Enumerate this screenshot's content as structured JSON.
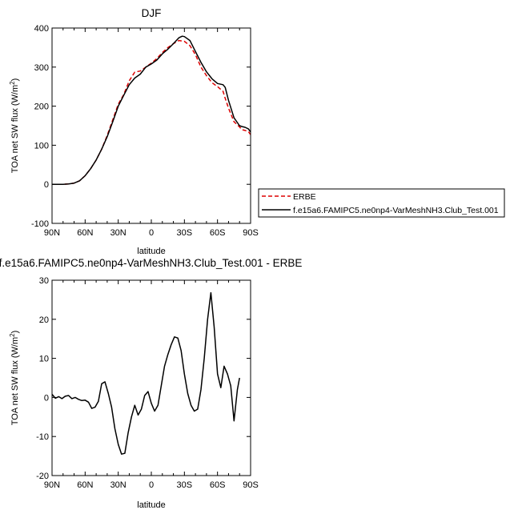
{
  "colors": {
    "erbe": "#dd0000",
    "model": "#000000"
  },
  "chart_data": [
    {
      "type": "line",
      "title": "DJF",
      "xlabel": "latitude",
      "ylabel": "TOA net SW flux (W/m",
      "ylabel_sup": "2",
      "ylabel_tail": ")",
      "xlim": [
        90,
        -90
      ],
      "ylim": [
        -100,
        400
      ],
      "x_ticks": [
        90,
        60,
        30,
        0,
        -30,
        -60,
        -90
      ],
      "x_tick_labels": [
        "90N",
        "60N",
        "30N",
        "0",
        "30S",
        "60S",
        "90S"
      ],
      "y_ticks": [
        -100,
        0,
        100,
        200,
        300,
        400
      ],
      "y_tick_labels": [
        "-100",
        "0",
        "100",
        "200",
        "300",
        "400"
      ],
      "legend_position": "right",
      "series": [
        {
          "name": "ERBE",
          "style": "dashed",
          "points": [
            [
              90,
              0
            ],
            [
              80,
              0
            ],
            [
              75,
              1
            ],
            [
              70,
              3
            ],
            [
              65,
              9
            ],
            [
              60,
              22
            ],
            [
              55,
              40
            ],
            [
              50,
              62
            ],
            [
              45,
              90
            ],
            [
              40,
              125
            ],
            [
              35,
              165
            ],
            [
              30,
              205
            ],
            [
              25,
              230
            ],
            [
              20,
              265
            ],
            [
              15,
              287
            ],
            [
              10,
              290
            ],
            [
              5,
              300
            ],
            [
              0,
              310
            ],
            [
              -5,
              322
            ],
            [
              -10,
              337
            ],
            [
              -15,
              350
            ],
            [
              -20,
              360
            ],
            [
              -25,
              368
            ],
            [
              -30,
              366
            ],
            [
              -35,
              355
            ],
            [
              -40,
              332
            ],
            [
              -45,
              300
            ],
            [
              -50,
              278
            ],
            [
              -55,
              260
            ],
            [
              -60,
              250
            ],
            [
              -65,
              238
            ],
            [
              -67,
              220
            ],
            [
              -70,
              195
            ],
            [
              -75,
              160
            ],
            [
              -80,
              147
            ],
            [
              -82,
              140
            ],
            [
              -85,
              138
            ],
            [
              -88,
              135
            ],
            [
              -90,
              127
            ]
          ]
        },
        {
          "name": "f.e15a6.FAMIPC5.ne0np4-VarMeshNH3.Club_Test.001",
          "style": "solid",
          "points": [
            [
              90,
              0
            ],
            [
              80,
              0
            ],
            [
              75,
              1
            ],
            [
              70,
              3
            ],
            [
              65,
              9
            ],
            [
              60,
              22
            ],
            [
              55,
              40
            ],
            [
              50,
              62
            ],
            [
              45,
              90
            ],
            [
              40,
              122
            ],
            [
              35,
              160
            ],
            [
              30,
              200
            ],
            [
              25,
              228
            ],
            [
              20,
              255
            ],
            [
              15,
              272
            ],
            [
              10,
              282
            ],
            [
              5,
              300
            ],
            [
              0,
              308
            ],
            [
              -5,
              318
            ],
            [
              -10,
              334
            ],
            [
              -15,
              346
            ],
            [
              -20,
              360
            ],
            [
              -25,
              375
            ],
            [
              -28,
              379
            ],
            [
              -30,
              378
            ],
            [
              -35,
              368
            ],
            [
              -40,
              340
            ],
            [
              -45,
              312
            ],
            [
              -50,
              288
            ],
            [
              -55,
              270
            ],
            [
              -60,
              258
            ],
            [
              -65,
              255
            ],
            [
              -67,
              248
            ],
            [
              -70,
              215
            ],
            [
              -75,
              170
            ],
            [
              -80,
              150
            ],
            [
              -82,
              148
            ],
            [
              -85,
              146
            ],
            [
              -88,
              142
            ],
            [
              -90,
              134
            ]
          ]
        }
      ]
    },
    {
      "type": "line",
      "title": "f.e15a6.FAMIPC5.ne0np4-VarMeshNH3.Club_Test.001 - ERBE",
      "xlabel": "latitude",
      "ylabel": "TOA net SW flux (W/m",
      "ylabel_sup": "2",
      "ylabel_tail": ")",
      "xlim": [
        90,
        -90
      ],
      "ylim": [
        -20,
        30
      ],
      "x_ticks": [
        90,
        60,
        30,
        0,
        -30,
        -60,
        -90
      ],
      "x_tick_labels": [
        "90N",
        "60N",
        "30N",
        "0",
        "30S",
        "60S",
        "90S"
      ],
      "y_ticks": [
        -20,
        -10,
        0,
        10,
        20,
        30
      ],
      "y_tick_labels": [
        "-20",
        "-10",
        "0",
        "10",
        "20",
        "30"
      ],
      "series": [
        {
          "style": "solid",
          "points": [
            [
              90,
              0.8
            ],
            [
              87,
              -0.2
            ],
            [
              84,
              0.2
            ],
            [
              81,
              -0.3
            ],
            [
              78,
              0.3
            ],
            [
              75,
              0.5
            ],
            [
              72,
              -0.3
            ],
            [
              69,
              0
            ],
            [
              66,
              -0.5
            ],
            [
              63,
              -0.8
            ],
            [
              60,
              -0.7
            ],
            [
              57,
              -1.2
            ],
            [
              54,
              -2.8
            ],
            [
              51,
              -2.5
            ],
            [
              48,
              -1
            ],
            [
              45,
              3.5
            ],
            [
              42,
              4
            ],
            [
              39,
              1
            ],
            [
              36,
              -2.5
            ],
            [
              33,
              -8
            ],
            [
              30,
              -12
            ],
            [
              27,
              -14.5
            ],
            [
              24,
              -14.3
            ],
            [
              21,
              -9
            ],
            [
              18,
              -5
            ],
            [
              15,
              -2
            ],
            [
              12,
              -4.5
            ],
            [
              9,
              -3
            ],
            [
              6,
              0.5
            ],
            [
              3,
              1.5
            ],
            [
              0,
              -1.5
            ],
            [
              -3,
              -3.5
            ],
            [
              -6,
              -2
            ],
            [
              -9,
              3
            ],
            [
              -12,
              8
            ],
            [
              -15,
              11
            ],
            [
              -18,
              13.5
            ],
            [
              -21,
              15.5
            ],
            [
              -24,
              15.2
            ],
            [
              -27,
              12
            ],
            [
              -30,
              6
            ],
            [
              -33,
              1
            ],
            [
              -36,
              -2
            ],
            [
              -39,
              -3.5
            ],
            [
              -42,
              -3
            ],
            [
              -45,
              2
            ],
            [
              -48,
              10
            ],
            [
              -51,
              20
            ],
            [
              -54,
              26.8
            ],
            [
              -57,
              18
            ],
            [
              -60,
              6
            ],
            [
              -63,
              2.5
            ],
            [
              -66,
              8
            ],
            [
              -69,
              6
            ],
            [
              -72,
              3
            ],
            [
              -75,
              -6
            ],
            [
              -78,
              2
            ],
            [
              -80,
              5
            ]
          ]
        }
      ]
    }
  ]
}
